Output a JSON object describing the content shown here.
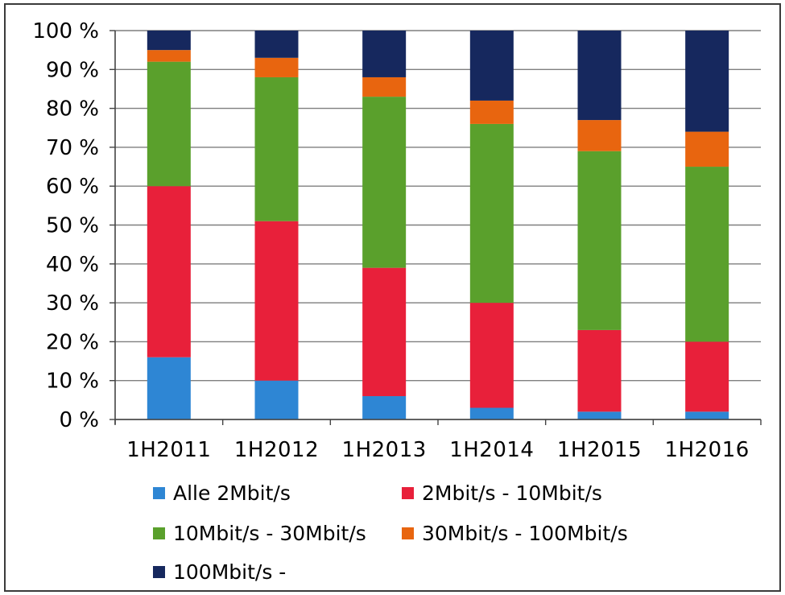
{
  "chart_data": {
    "type": "bar",
    "stacked": true,
    "categories": [
      "1H2011",
      "1H2012",
      "1H2013",
      "1H2014",
      "1H2015",
      "1H2016"
    ],
    "y_ticks": [
      "0 %",
      "10 %",
      "20 %",
      "30 %",
      "40 %",
      "50 %",
      "60 %",
      "70 %",
      "80 %",
      "90 %",
      "100 %"
    ],
    "ylim": [
      0,
      100
    ],
    "grid": true,
    "legend_position": "bottom",
    "series": [
      {
        "name": "Alle 2Mbit/s",
        "color": "#2e86d4",
        "values": [
          16,
          10,
          6,
          3,
          2,
          2
        ]
      },
      {
        "name": "2Mbit/s - 10Mbit/s",
        "color": "#e8203a",
        "values": [
          44,
          41,
          33,
          27,
          21,
          18
        ]
      },
      {
        "name": "10Mbit/s - 30Mbit/s",
        "color": "#5aa02c",
        "values": [
          32,
          37,
          44,
          46,
          46,
          45
        ]
      },
      {
        "name": "30Mbit/s - 100Mbit/s",
        "color": "#e8650f",
        "values": [
          3,
          5,
          5,
          6,
          8,
          9
        ]
      },
      {
        "name": "100Mbit/s -",
        "color": "#16285e",
        "values": [
          5,
          7,
          12,
          18,
          23,
          26
        ]
      }
    ]
  }
}
